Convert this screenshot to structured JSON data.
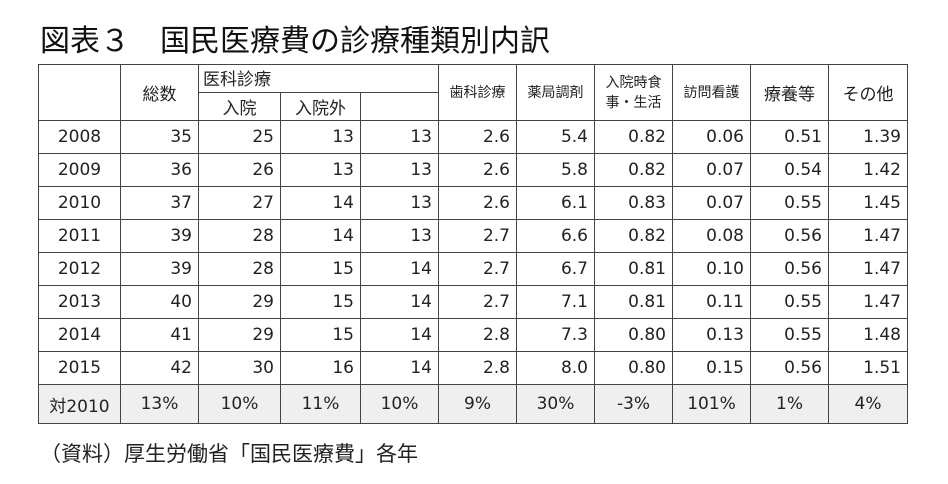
{
  "title": "図表３　国民医療費の診療種類別内訳",
  "headers": {
    "total": "総数",
    "medical": "医科診療",
    "inpatient": "入院",
    "outpatient": "入院外",
    "dental": "歯科診療",
    "pharmacy": "薬局調剤",
    "meals_line1": "入院時食",
    "meals_line2": "事・生活",
    "nursing": "訪問看護",
    "care": "療養等",
    "other": "その他"
  },
  "rows": [
    [
      "2008",
      "35",
      "25",
      "13",
      "13",
      "2.6",
      "5.4",
      "0.82",
      "0.06",
      "0.51",
      "1.39"
    ],
    [
      "2009",
      "36",
      "26",
      "13",
      "13",
      "2.6",
      "5.8",
      "0.82",
      "0.07",
      "0.54",
      "1.42"
    ],
    [
      "2010",
      "37",
      "27",
      "14",
      "13",
      "2.6",
      "6.1",
      "0.83",
      "0.07",
      "0.55",
      "1.45"
    ],
    [
      "2011",
      "39",
      "28",
      "14",
      "13",
      "2.7",
      "6.6",
      "0.82",
      "0.08",
      "0.56",
      "1.47"
    ],
    [
      "2012",
      "39",
      "28",
      "15",
      "14",
      "2.7",
      "6.7",
      "0.81",
      "0.10",
      "0.56",
      "1.47"
    ],
    [
      "2013",
      "40",
      "29",
      "15",
      "14",
      "2.7",
      "7.1",
      "0.81",
      "0.11",
      "0.55",
      "1.47"
    ],
    [
      "2014",
      "41",
      "29",
      "15",
      "14",
      "2.8",
      "7.3",
      "0.80",
      "0.13",
      "0.55",
      "1.48"
    ],
    [
      "2015",
      "42",
      "30",
      "16",
      "14",
      "2.8",
      "8.0",
      "0.80",
      "0.15",
      "0.56",
      "1.51"
    ]
  ],
  "summary": [
    "対2010",
    "13%",
    "10%",
    "11%",
    "10%",
    "9%",
    "30%",
    "-3%",
    "101%",
    "1%",
    "4%"
  ],
  "source": "（資料）厚生労働省「国民医療費」各年"
}
